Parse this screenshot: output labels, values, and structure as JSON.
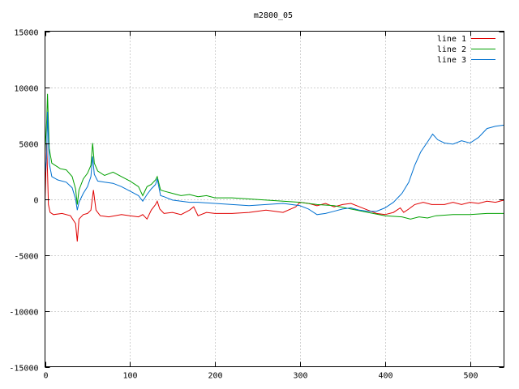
{
  "chart_data": {
    "type": "line",
    "title": "m2800_05",
    "xlabel": "",
    "ylabel": "",
    "xlim": [
      0,
      540
    ],
    "ylim": [
      -15000,
      15000
    ],
    "x_ticks": [
      0,
      100,
      200,
      300,
      400,
      500
    ],
    "y_ticks": [
      -15000,
      -10000,
      -5000,
      0,
      5000,
      10000,
      15000
    ],
    "x_tick_labels": [
      "0",
      "100",
      "200",
      "300",
      "400",
      "500"
    ],
    "y_tick_labels": [
      "-15000",
      "-10000",
      "-5000",
      "0",
      "5000",
      "10000",
      "15000"
    ],
    "grid": true,
    "legend_position": "top-right",
    "series": [
      {
        "name": "line 1",
        "color": "#e00000",
        "points": [
          [
            0,
            -200
          ],
          [
            2,
            5000
          ],
          [
            4,
            -500
          ],
          [
            6,
            -1200
          ],
          [
            10,
            -1400
          ],
          [
            20,
            -1300
          ],
          [
            30,
            -1500
          ],
          [
            36,
            -2200
          ],
          [
            38,
            -3800
          ],
          [
            40,
            -1800
          ],
          [
            45,
            -1400
          ],
          [
            50,
            -1300
          ],
          [
            54,
            -1000
          ],
          [
            57,
            800
          ],
          [
            60,
            -1000
          ],
          [
            65,
            -1500
          ],
          [
            75,
            -1600
          ],
          [
            90,
            -1400
          ],
          [
            100,
            -1500
          ],
          [
            110,
            -1600
          ],
          [
            115,
            -1400
          ],
          [
            120,
            -1800
          ],
          [
            125,
            -1000
          ],
          [
            130,
            -500
          ],
          [
            132,
            -200
          ],
          [
            135,
            -900
          ],
          [
            140,
            -1300
          ],
          [
            150,
            -1200
          ],
          [
            160,
            -1400
          ],
          [
            170,
            -1000
          ],
          [
            175,
            -700
          ],
          [
            180,
            -1500
          ],
          [
            190,
            -1200
          ],
          [
            200,
            -1300
          ],
          [
            220,
            -1300
          ],
          [
            240,
            -1200
          ],
          [
            260,
            -1000
          ],
          [
            280,
            -1200
          ],
          [
            295,
            -700
          ],
          [
            300,
            -300
          ],
          [
            310,
            -400
          ],
          [
            320,
            -600
          ],
          [
            330,
            -400
          ],
          [
            340,
            -700
          ],
          [
            350,
            -500
          ],
          [
            360,
            -400
          ],
          [
            370,
            -700
          ],
          [
            380,
            -1000
          ],
          [
            390,
            -1300
          ],
          [
            400,
            -1400
          ],
          [
            410,
            -1200
          ],
          [
            418,
            -800
          ],
          [
            422,
            -1200
          ],
          [
            428,
            -900
          ],
          [
            435,
            -500
          ],
          [
            445,
            -300
          ],
          [
            455,
            -500
          ],
          [
            470,
            -500
          ],
          [
            480,
            -300
          ],
          [
            490,
            -500
          ],
          [
            500,
            -300
          ],
          [
            510,
            -400
          ],
          [
            520,
            -200
          ],
          [
            530,
            -300
          ],
          [
            540,
            -100
          ]
        ]
      },
      {
        "name": "line 2",
        "color": "#00a000",
        "points": [
          [
            0,
            4200
          ],
          [
            2,
            7000
          ],
          [
            3,
            9400
          ],
          [
            5,
            4500
          ],
          [
            8,
            3200
          ],
          [
            12,
            3000
          ],
          [
            18,
            2700
          ],
          [
            25,
            2600
          ],
          [
            32,
            2000
          ],
          [
            36,
            900
          ],
          [
            38,
            -500
          ],
          [
            40,
            800
          ],
          [
            45,
            1800
          ],
          [
            50,
            2300
          ],
          [
            54,
            3000
          ],
          [
            56,
            5000
          ],
          [
            58,
            3200
          ],
          [
            62,
            2500
          ],
          [
            70,
            2100
          ],
          [
            80,
            2400
          ],
          [
            90,
            2000
          ],
          [
            100,
            1600
          ],
          [
            110,
            1100
          ],
          [
            115,
            300
          ],
          [
            120,
            1100
          ],
          [
            125,
            1300
          ],
          [
            130,
            1700
          ],
          [
            132,
            2000
          ],
          [
            136,
            800
          ],
          [
            140,
            700
          ],
          [
            150,
            500
          ],
          [
            160,
            300
          ],
          [
            170,
            400
          ],
          [
            180,
            200
          ],
          [
            190,
            300
          ],
          [
            200,
            100
          ],
          [
            220,
            100
          ],
          [
            240,
            0
          ],
          [
            260,
            -100
          ],
          [
            280,
            -200
          ],
          [
            300,
            -300
          ],
          [
            320,
            -500
          ],
          [
            340,
            -600
          ],
          [
            360,
            -900
          ],
          [
            380,
            -1200
          ],
          [
            400,
            -1500
          ],
          [
            420,
            -1600
          ],
          [
            430,
            -1800
          ],
          [
            440,
            -1600
          ],
          [
            450,
            -1700
          ],
          [
            460,
            -1500
          ],
          [
            480,
            -1400
          ],
          [
            500,
            -1400
          ],
          [
            520,
            -1300
          ],
          [
            540,
            -1300
          ]
        ]
      },
      {
        "name": "line 3",
        "color": "#0070d0",
        "points": [
          [
            0,
            2300
          ],
          [
            2,
            3800
          ],
          [
            3,
            7800
          ],
          [
            5,
            3200
          ],
          [
            8,
            2000
          ],
          [
            15,
            1700
          ],
          [
            25,
            1500
          ],
          [
            32,
            1000
          ],
          [
            36,
            0
          ],
          [
            38,
            -1000
          ],
          [
            40,
            -300
          ],
          [
            45,
            500
          ],
          [
            50,
            1100
          ],
          [
            54,
            2000
          ],
          [
            56,
            3800
          ],
          [
            58,
            2200
          ],
          [
            62,
            1600
          ],
          [
            70,
            1500
          ],
          [
            80,
            1400
          ],
          [
            90,
            1100
          ],
          [
            100,
            700
          ],
          [
            110,
            300
          ],
          [
            115,
            -200
          ],
          [
            120,
            400
          ],
          [
            125,
            900
          ],
          [
            130,
            1300
          ],
          [
            132,
            1800
          ],
          [
            136,
            300
          ],
          [
            140,
            200
          ],
          [
            150,
            -100
          ],
          [
            160,
            -200
          ],
          [
            170,
            -300
          ],
          [
            180,
            -300
          ],
          [
            200,
            -400
          ],
          [
            220,
            -500
          ],
          [
            240,
            -600
          ],
          [
            260,
            -500
          ],
          [
            280,
            -400
          ],
          [
            300,
            -600
          ],
          [
            310,
            -900
          ],
          [
            320,
            -1400
          ],
          [
            330,
            -1300
          ],
          [
            340,
            -1100
          ],
          [
            350,
            -900
          ],
          [
            360,
            -800
          ],
          [
            370,
            -1000
          ],
          [
            380,
            -1100
          ],
          [
            390,
            -1100
          ],
          [
            400,
            -800
          ],
          [
            410,
            -300
          ],
          [
            420,
            500
          ],
          [
            428,
            1500
          ],
          [
            435,
            3000
          ],
          [
            442,
            4200
          ],
          [
            450,
            5100
          ],
          [
            456,
            5800
          ],
          [
            462,
            5300
          ],
          [
            470,
            5000
          ],
          [
            480,
            4900
          ],
          [
            490,
            5200
          ],
          [
            500,
            5000
          ],
          [
            510,
            5500
          ],
          [
            520,
            6300
          ],
          [
            530,
            6500
          ],
          [
            540,
            6600
          ]
        ]
      }
    ]
  }
}
